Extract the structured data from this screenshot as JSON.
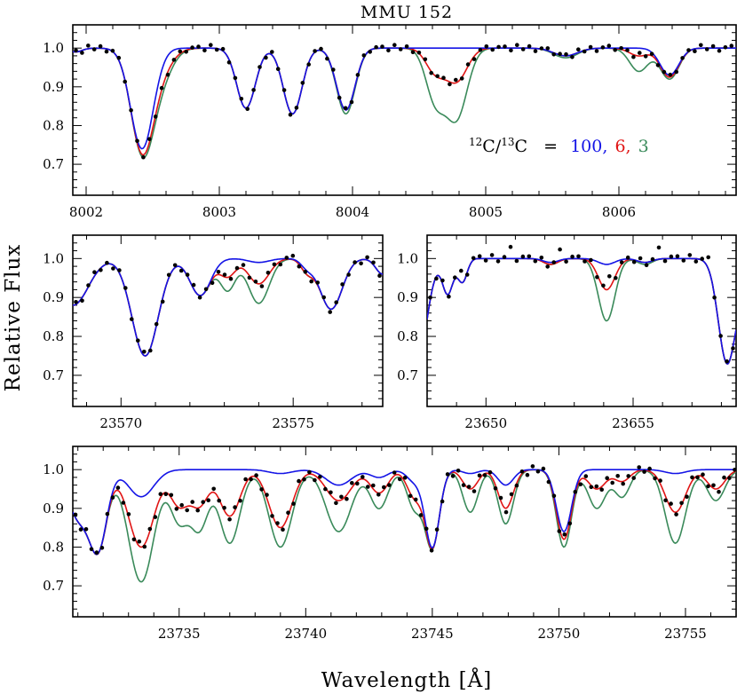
{
  "colors": {
    "series_100": "#1414e6",
    "series_6": "#e01414",
    "series_3": "#3a8a5a",
    "observed": "#000000"
  },
  "figure": {
    "title": "MMU 152",
    "ylabel": "Relative Flux",
    "xlabel": "Wavelength [Å]"
  },
  "annotation": {
    "ratio_label_12": "12",
    "ratio_label_c1": "C/",
    "ratio_label_13": "13",
    "ratio_label_c2": "C",
    "equals": "=",
    "v100": "100,",
    "v6": "6,",
    "v3": "3"
  },
  "chart_data": [
    {
      "type": "line",
      "panel": "top",
      "title": "MMU 152",
      "xlim": [
        8001.9,
        8006.88
      ],
      "ylim": [
        0.62,
        1.06
      ],
      "xticks": [
        8002,
        8003,
        8004,
        8005,
        8006
      ],
      "xtick_labels": [
        "8002",
        "8003",
        "8004",
        "8005",
        "8006"
      ],
      "yticks": [
        0.7,
        0.8,
        0.9,
        1.0
      ],
      "ytick_labels": [
        "0.7",
        "0.8",
        "0.9",
        "1.0"
      ],
      "lines": [
        {
          "center": 8002.42,
          "width": 0.085,
          "depth": [
            0.26,
            0.26,
            0.26
          ]
        },
        {
          "center": 8002.56,
          "width": 0.09,
          "depth": [
            0.0,
            0.05,
            0.07
          ]
        },
        {
          "center": 8003.2,
          "width": 0.07,
          "depth": [
            0.155,
            0.155,
            0.155
          ]
        },
        {
          "center": 8003.55,
          "width": 0.07,
          "depth": [
            0.17,
            0.17,
            0.17
          ]
        },
        {
          "center": 8003.95,
          "width": 0.07,
          "depth": [
            0.16,
            0.16,
            0.17
          ]
        },
        {
          "center": 8004.62,
          "width": 0.07,
          "depth": [
            0.0,
            0.06,
            0.13
          ]
        },
        {
          "center": 8004.78,
          "width": 0.08,
          "depth": [
            0.0,
            0.085,
            0.18
          ]
        },
        {
          "center": 8005.6,
          "width": 0.09,
          "depth": [
            0.02,
            0.02,
            0.025
          ]
        },
        {
          "center": 8006.15,
          "width": 0.07,
          "depth": [
            0.0,
            0.02,
            0.06
          ]
        },
        {
          "center": 8006.38,
          "width": 0.07,
          "depth": [
            0.07,
            0.075,
            0.08
          ]
        },
        {
          "center": 8001.92,
          "width": 0.05,
          "depth": [
            0.01,
            0.01,
            0.01
          ]
        }
      ],
      "observed": {
        "noise": [
          0.004,
          -0.006,
          0.008,
          -0.003,
          0.005,
          -0.007,
          0.002,
          0.006,
          -0.004,
          0.003
        ],
        "step": 0.046
      }
    },
    {
      "type": "line",
      "panel": "middle-left",
      "xlim": [
        23568.6,
        23577.6
      ],
      "ylim": [
        0.62,
        1.06
      ],
      "xticks": [
        23570,
        23575
      ],
      "xtick_labels": [
        "23570",
        "23575"
      ],
      "yticks": [
        0.7,
        0.8,
        0.9,
        1.0
      ],
      "ytick_labels": [
        "0.7",
        "0.8",
        "0.9",
        "1.0"
      ],
      "lines": [
        {
          "center": 23568.6,
          "width": 0.45,
          "depth": [
            0.12,
            0.12,
            0.12
          ]
        },
        {
          "center": 23570.7,
          "width": 0.38,
          "depth": [
            0.25,
            0.25,
            0.25
          ]
        },
        {
          "center": 23572.3,
          "width": 0.3,
          "depth": [
            0.095,
            0.095,
            0.095
          ]
        },
        {
          "center": 23573.1,
          "width": 0.22,
          "depth": [
            0.0,
            0.045,
            0.08
          ]
        },
        {
          "center": 23574.0,
          "width": 0.3,
          "depth": [
            0.01,
            0.065,
            0.115
          ]
        },
        {
          "center": 23575.4,
          "width": 0.18,
          "depth": [
            0.02,
            0.03,
            0.03
          ]
        },
        {
          "center": 23576.1,
          "width": 0.32,
          "depth": [
            0.13,
            0.13,
            0.13
          ]
        },
        {
          "center": 23577.6,
          "width": 0.2,
          "depth": [
            0.04,
            0.04,
            0.04
          ]
        }
      ],
      "observed": {
        "noise": [
          0.006,
          -0.008,
          0.004,
          0.01,
          -0.005,
          0.003,
          -0.009,
          0.007
        ],
        "step": 0.18
      }
    },
    {
      "type": "line",
      "panel": "middle-right",
      "xlim": [
        23648.0,
        23658.5
      ],
      "ylim": [
        0.62,
        1.06
      ],
      "xticks": [
        23650,
        23655
      ],
      "xtick_labels": [
        "23650",
        "23655"
      ],
      "yticks": [
        0.7,
        0.8,
        0.9,
        1.0
      ],
      "ytick_labels": [
        "0.7",
        "0.8",
        "0.9",
        "1.0"
      ],
      "lines": [
        {
          "center": 23647.6,
          "width": 0.35,
          "depth": [
            0.3,
            0.3,
            0.3
          ]
        },
        {
          "center": 23648.7,
          "width": 0.18,
          "depth": [
            0.09,
            0.09,
            0.09
          ]
        },
        {
          "center": 23649.2,
          "width": 0.16,
          "depth": [
            0.06,
            0.06,
            0.06
          ]
        },
        {
          "center": 23652.2,
          "width": 0.25,
          "depth": [
            0.01,
            0.015,
            0.015
          ]
        },
        {
          "center": 23654.1,
          "width": 0.28,
          "depth": [
            0.015,
            0.08,
            0.16
          ]
        },
        {
          "center": 23655.4,
          "width": 0.25,
          "depth": [
            0.01,
            0.01,
            0.015
          ]
        },
        {
          "center": 23658.2,
          "width": 0.3,
          "depth": [
            0.27,
            0.27,
            0.27
          ]
        },
        {
          "center": 23658.9,
          "width": 0.22,
          "depth": [
            0.1,
            0.1,
            0.1
          ]
        }
      ],
      "observed": {
        "noise": [
          0.006,
          -0.005,
          0.009,
          -0.007,
          0.004,
          0.03,
          -0.006,
          0.005
        ],
        "step": 0.21
      }
    },
    {
      "type": "line",
      "panel": "bottom",
      "xlim": [
        23730.8,
        23757.0
      ],
      "ylim": [
        0.62,
        1.06
      ],
      "xticks": [
        23735,
        23740,
        23745,
        23750,
        23755
      ],
      "xtick_labels": [
        "23735",
        "23740",
        "23745",
        "23750",
        "23755"
      ],
      "yticks": [
        0.7,
        0.8,
        0.9,
        1.0
      ],
      "ytick_labels": [
        "0.7",
        "0.8",
        "0.9",
        "1.0"
      ],
      "lines": [
        {
          "center": 23731.0,
          "width": 0.4,
          "depth": [
            0.12,
            0.12,
            0.12
          ]
        },
        {
          "center": 23731.8,
          "width": 0.35,
          "depth": [
            0.2,
            0.2,
            0.2
          ]
        },
        {
          "center": 23733.5,
          "width": 0.5,
          "depth": [
            0.07,
            0.2,
            0.29
          ]
        },
        {
          "center": 23735.0,
          "width": 0.35,
          "depth": [
            0.0,
            0.09,
            0.13
          ]
        },
        {
          "center": 23735.8,
          "width": 0.35,
          "depth": [
            0.0,
            0.09,
            0.15
          ]
        },
        {
          "center": 23737.0,
          "width": 0.4,
          "depth": [
            0.0,
            0.12,
            0.19
          ]
        },
        {
          "center": 23739.0,
          "width": 0.45,
          "depth": [
            0.01,
            0.15,
            0.2
          ]
        },
        {
          "center": 23741.3,
          "width": 0.5,
          "depth": [
            0.04,
            0.08,
            0.16
          ]
        },
        {
          "center": 23742.9,
          "width": 0.35,
          "depth": [
            0.02,
            0.06,
            0.1
          ]
        },
        {
          "center": 23744.3,
          "width": 0.3,
          "depth": [
            0.03,
            0.07,
            0.1
          ]
        },
        {
          "center": 23745.0,
          "width": 0.28,
          "depth": [
            0.2,
            0.2,
            0.2
          ]
        },
        {
          "center": 23746.5,
          "width": 0.3,
          "depth": [
            0.01,
            0.05,
            0.11
          ]
        },
        {
          "center": 23747.9,
          "width": 0.3,
          "depth": [
            0.04,
            0.1,
            0.14
          ]
        },
        {
          "center": 23750.2,
          "width": 0.3,
          "depth": [
            0.16,
            0.18,
            0.2
          ]
        },
        {
          "center": 23751.5,
          "width": 0.35,
          "depth": [
            0.0,
            0.05,
            0.1
          ]
        },
        {
          "center": 23752.5,
          "width": 0.3,
          "depth": [
            0.0,
            0.03,
            0.07
          ]
        },
        {
          "center": 23754.6,
          "width": 0.4,
          "depth": [
            0.01,
            0.11,
            0.19
          ]
        },
        {
          "center": 23756.2,
          "width": 0.35,
          "depth": [
            0.0,
            0.05,
            0.08
          ]
        }
      ],
      "observed": {
        "noise": [
          0.008,
          -0.01,
          0.012,
          -0.006,
          0.005,
          -0.012,
          0.009,
          -0.004,
          0.007,
          -0.008
        ],
        "step": 0.21
      }
    }
  ]
}
